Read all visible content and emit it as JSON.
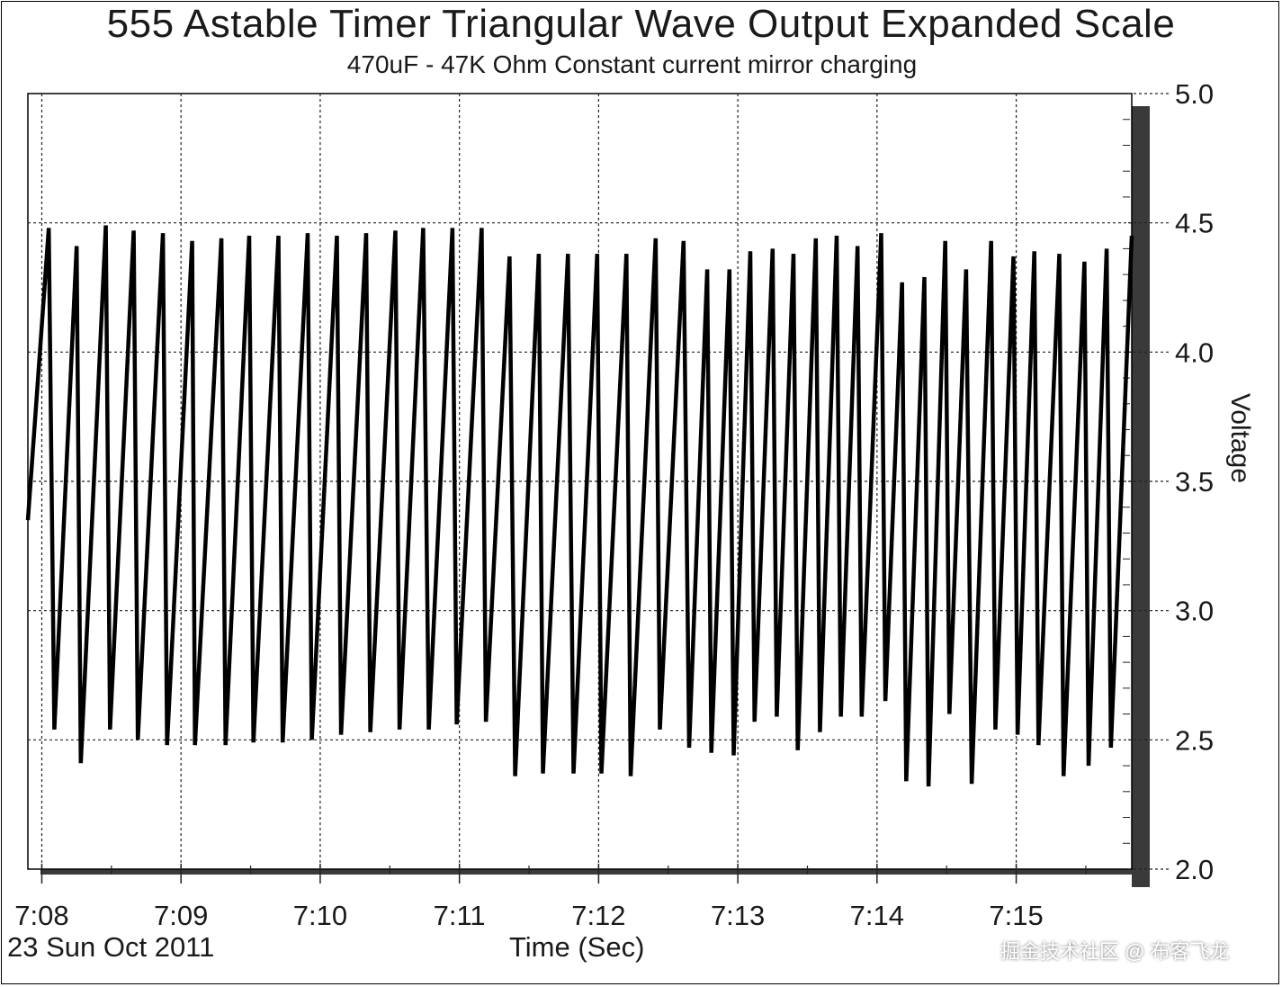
{
  "chart_data": {
    "type": "line",
    "title": "555 Astable Timer Triangular Wave Output  Expanded Scale",
    "subtitle": "470uF - 47K Ohm  Constant current mirror charging",
    "xlabel": "Time (Sec)",
    "ylabel": "Voltage",
    "date_label": "23 Sun Oct 2011",
    "x_ticks": [
      "7:08",
      "7:09",
      "7:10",
      "7:11",
      "7:12",
      "7:13",
      "7:14",
      "7:15"
    ],
    "y_ticks": [
      "2.0",
      "2.5",
      "3.0",
      "3.5",
      "4.0",
      "4.5",
      "5.0"
    ],
    "ylim": [
      2.0,
      5.0
    ],
    "xlim_minutes": [
      7.9,
      15.83
    ],
    "grid": true,
    "grid_style": "dotted",
    "series": [
      {
        "color": "#000000",
        "x_minutes": [
          7.9,
          8.05,
          8.09,
          8.25,
          8.28,
          8.46,
          8.49,
          8.66,
          8.69,
          8.87,
          8.9,
          9.08,
          9.1,
          9.29,
          9.32,
          9.49,
          9.52,
          9.7,
          9.73,
          9.91,
          9.94,
          10.12,
          10.15,
          10.33,
          10.36,
          10.54,
          10.57,
          10.74,
          10.78,
          10.95,
          10.98,
          11.16,
          11.19,
          11.36,
          11.4,
          11.57,
          11.6,
          11.78,
          11.82,
          11.99,
          12.02,
          12.2,
          12.23,
          12.41,
          12.44,
          12.61,
          12.65,
          12.78,
          12.81,
          12.94,
          12.97,
          13.09,
          13.12,
          13.25,
          13.28,
          13.4,
          13.43,
          13.56,
          13.59,
          13.71,
          13.74,
          13.86,
          13.89,
          14.03,
          14.06,
          14.18,
          14.21,
          14.34,
          14.37,
          14.49,
          14.52,
          14.64,
          14.68,
          14.82,
          14.85,
          14.98,
          15.01,
          15.13,
          15.16,
          15.31,
          15.34,
          15.49,
          15.52,
          15.65,
          15.68,
          15.83
        ],
        "y": [
          3.35,
          4.48,
          2.54,
          4.41,
          2.41,
          4.49,
          2.54,
          4.47,
          2.5,
          4.46,
          2.48,
          4.43,
          2.48,
          4.44,
          2.48,
          4.45,
          2.49,
          4.45,
          2.49,
          4.46,
          2.5,
          4.45,
          2.52,
          4.46,
          2.53,
          4.47,
          2.54,
          4.48,
          2.54,
          4.48,
          2.56,
          4.48,
          2.57,
          4.37,
          2.36,
          4.38,
          2.37,
          4.38,
          2.37,
          4.38,
          2.37,
          4.38,
          2.36,
          4.44,
          2.54,
          4.43,
          2.47,
          4.32,
          2.45,
          4.32,
          2.44,
          4.39,
          2.57,
          4.4,
          2.59,
          4.38,
          2.46,
          4.44,
          2.53,
          4.45,
          2.59,
          4.41,
          2.59,
          4.46,
          2.65,
          4.27,
          2.34,
          4.29,
          2.32,
          4.43,
          2.6,
          4.32,
          2.33,
          4.43,
          2.54,
          4.37,
          2.52,
          4.39,
          2.48,
          4.38,
          2.36,
          4.35,
          2.4,
          4.4,
          2.47,
          4.45
        ]
      }
    ]
  },
  "watermark": "掘金技术社区 @ 布客飞龙"
}
